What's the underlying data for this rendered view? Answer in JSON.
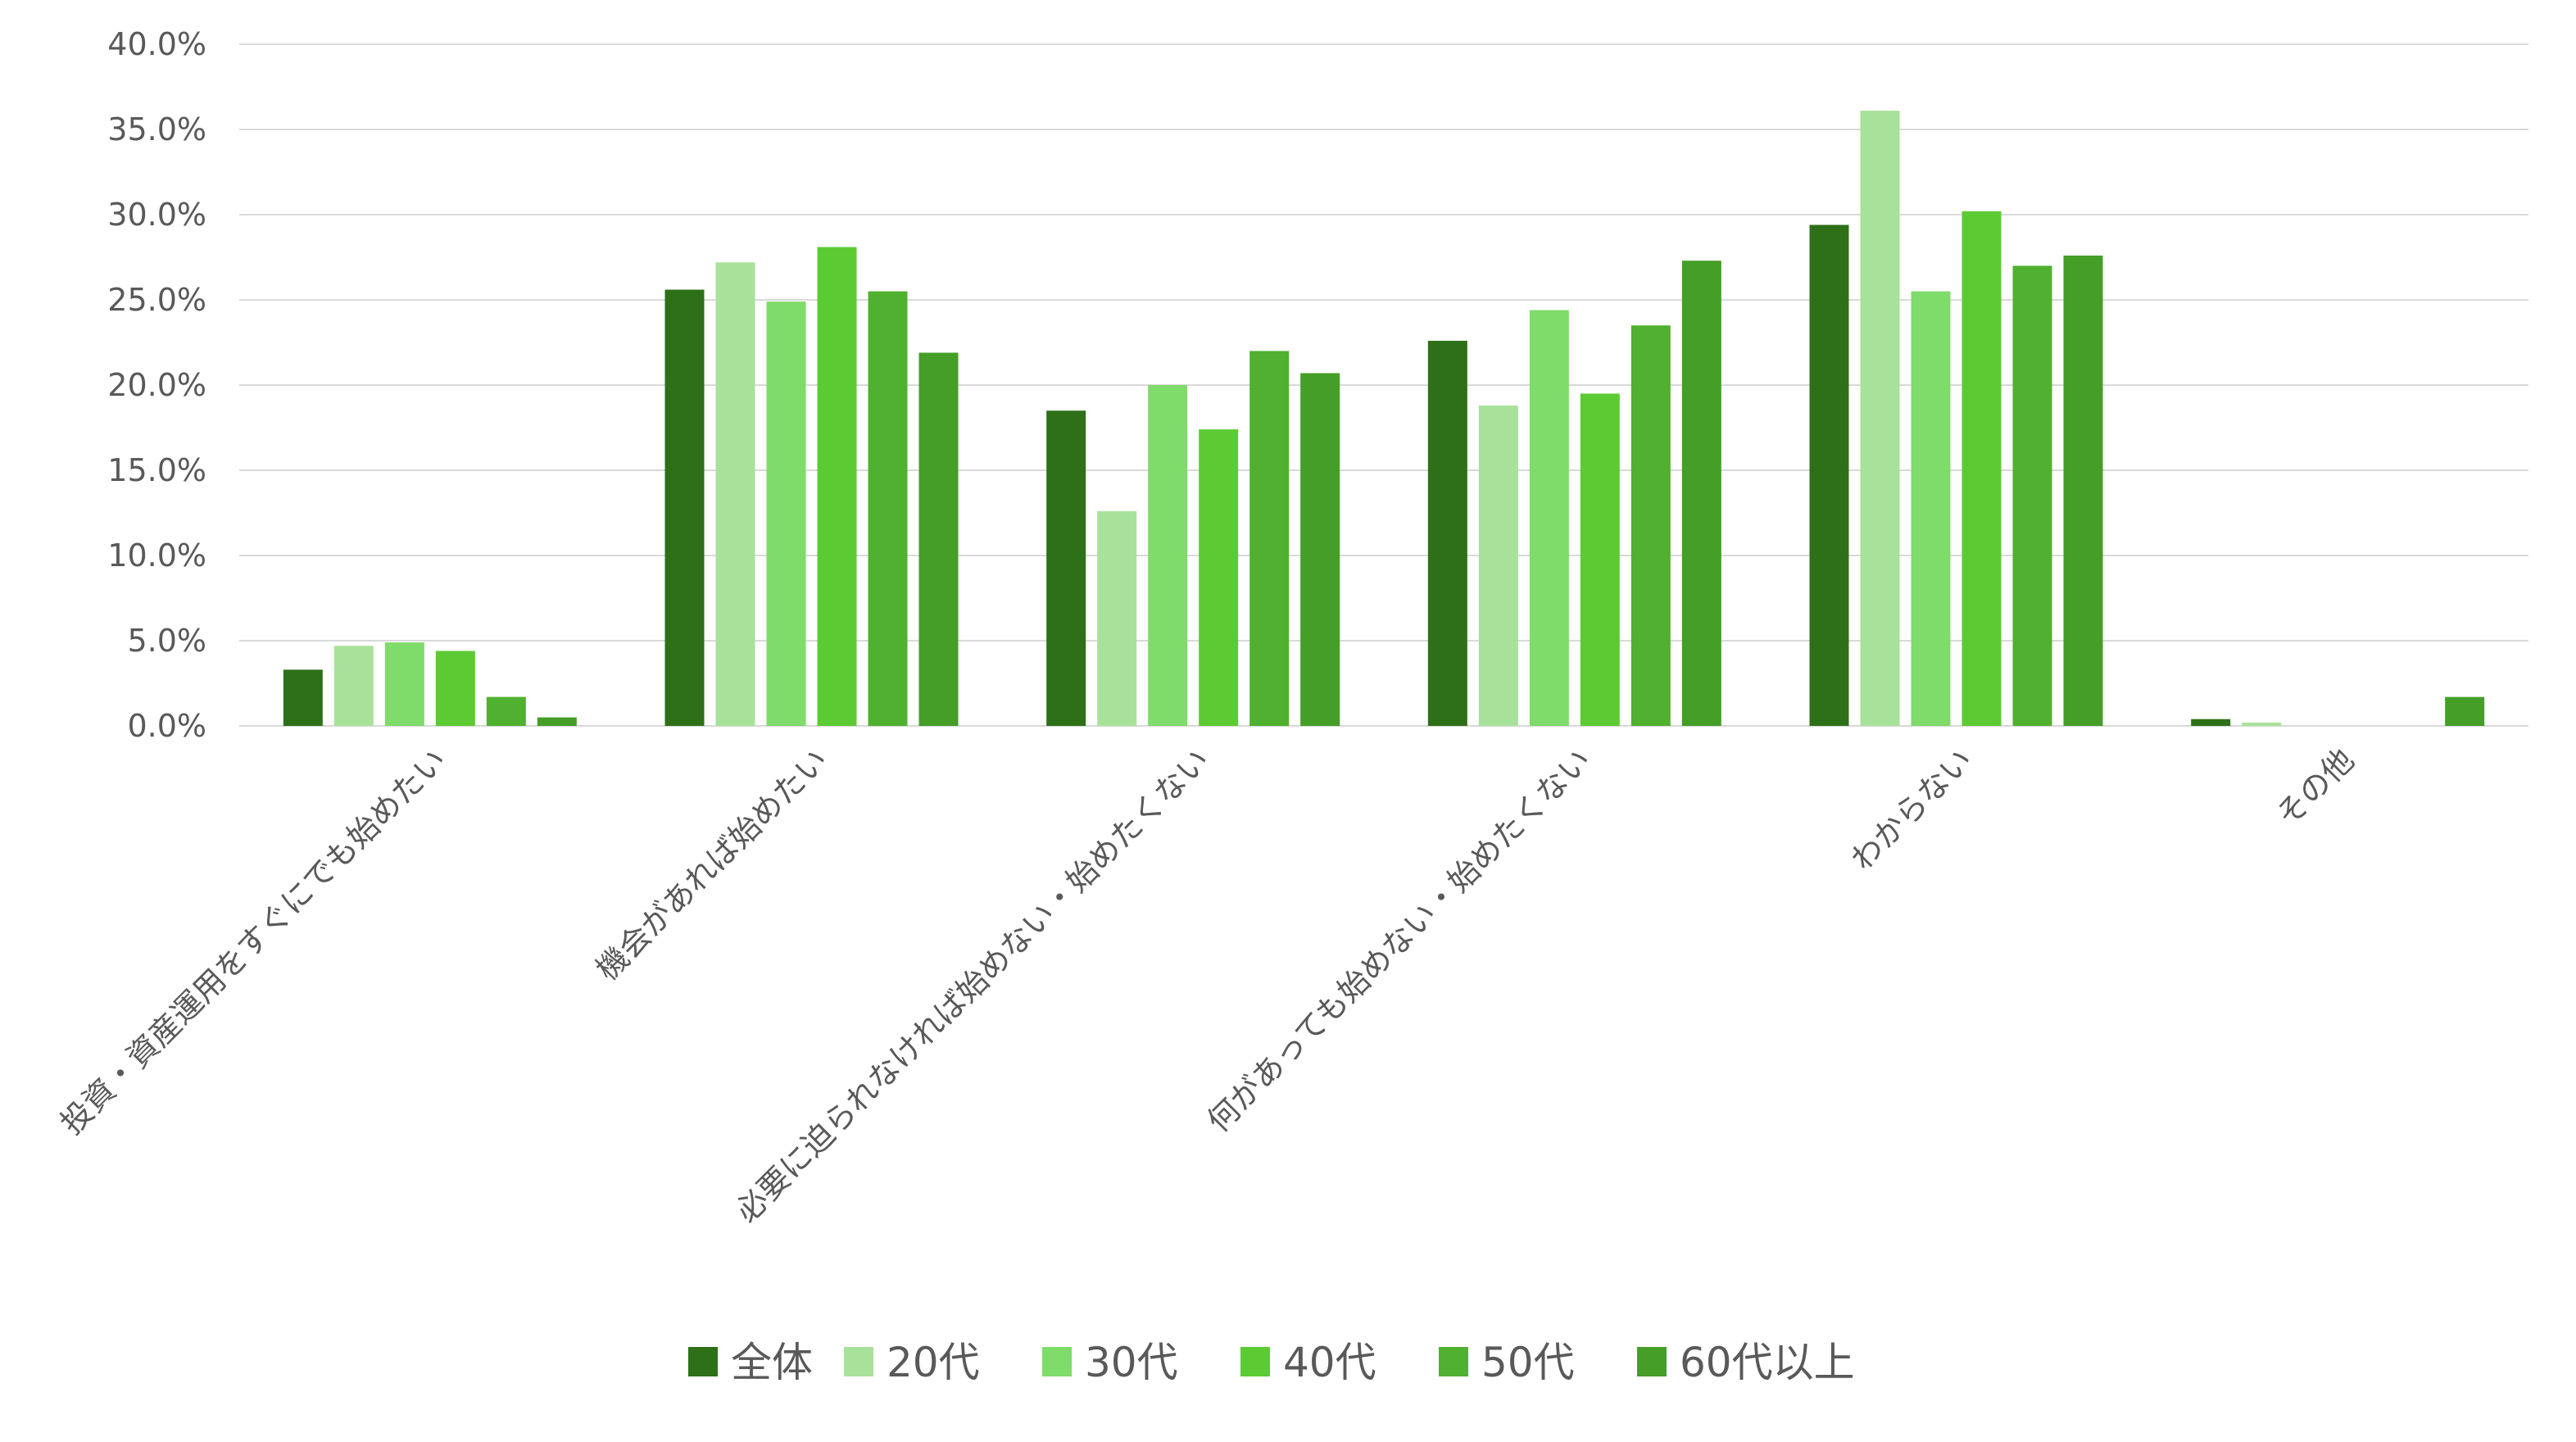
{
  "chart_data": {
    "type": "bar",
    "title": "",
    "xlabel": "",
    "ylabel": "",
    "ylim": [
      0,
      40
    ],
    "yticks": [
      "0.0%",
      "5.0%",
      "10.0%",
      "15.0%",
      "20.0%",
      "25.0%",
      "30.0%",
      "35.0%",
      "40.0%"
    ],
    "ytick_values": [
      0,
      5,
      10,
      15,
      20,
      25,
      30,
      35,
      40
    ],
    "grid": true,
    "legend_position": "bottom",
    "categories": [
      "投資・資産運用をすぐにでも始めたい",
      "機会があれば始めたい",
      "必要に迫られなければ始めない・始めたくない",
      "何があっても始めない・始めたくない",
      "わからない",
      "その他"
    ],
    "series": [
      {
        "name": "全体",
        "color": "#2e7018",
        "values": [
          3.3,
          25.6,
          18.5,
          22.6,
          29.4,
          0.4
        ]
      },
      {
        "name": "20代",
        "color": "#a8e29a",
        "values": [
          4.7,
          27.2,
          12.6,
          18.8,
          36.1,
          0.2
        ]
      },
      {
        "name": "30代",
        "color": "#7fdb6a",
        "values": [
          4.9,
          24.9,
          20.0,
          24.4,
          25.5,
          0.0
        ]
      },
      {
        "name": "40代",
        "color": "#5ccb33",
        "values": [
          4.4,
          28.1,
          17.4,
          19.5,
          30.2,
          0.0
        ]
      },
      {
        "name": "50代",
        "color": "#50b030",
        "values": [
          1.7,
          25.5,
          22.0,
          23.5,
          27.0,
          0.0
        ]
      },
      {
        "name": "60代以上",
        "color": "#449e28",
        "values": [
          0.5,
          21.9,
          20.7,
          27.3,
          27.6,
          1.7
        ]
      }
    ]
  }
}
